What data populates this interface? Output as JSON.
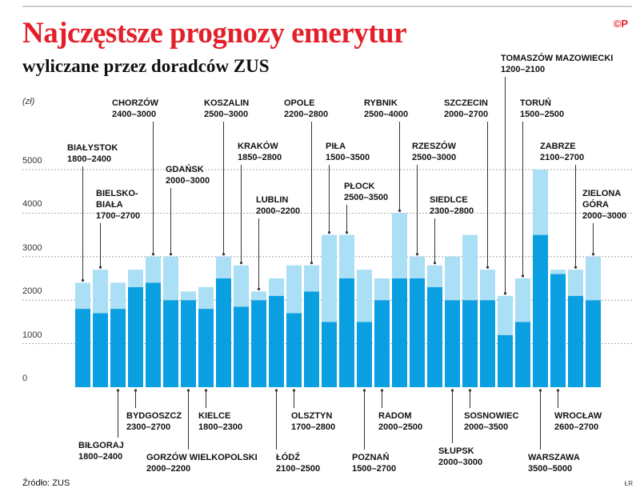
{
  "header": {
    "title": "Najczęstsze prognozy emerytur",
    "subtitle": "wyliczane przez doradców ZUS",
    "logo": "©P"
  },
  "chart_data": {
    "type": "range-bar",
    "unit": "(zł)",
    "categories": [
      "BIAŁYSTOK",
      "BIELSKO-BIAŁA",
      "BIŁGORAJ",
      "BYDGOSZCZ",
      "CHORZÓW",
      "GDAŃSK",
      "GORZÓW WIELKOPOLSKI",
      "KIELCE",
      "KOSZALIN",
      "KRAKÓW",
      "LUBLIN",
      "ŁÓDŹ",
      "OLSZTYN",
      "OPOLE",
      "PIŁA",
      "PŁOCK",
      "POZNAŃ",
      "RADOM",
      "RYBNIK",
      "RZESZÓW",
      "SIEDLCE",
      "SŁUPSK",
      "SOSNOWIEC",
      "SZCZECIN",
      "TOMASZÓW MAZOWIECKI",
      "TORUŃ",
      "WARSZAWA",
      "WROCŁAW",
      "ZABRZE",
      "ZIELONA GÓRA"
    ],
    "low": [
      1800,
      1700,
      1800,
      2300,
      2400,
      2000,
      2000,
      1800,
      2500,
      1850,
      2000,
      2100,
      1700,
      2200,
      1500,
      2500,
      1500,
      2000,
      2500,
      2500,
      2300,
      2000,
      2000,
      2000,
      1200,
      1500,
      3500,
      2600,
      2100,
      2000
    ],
    "high": [
      2400,
      2700,
      2400,
      2700,
      3000,
      3000,
      2200,
      2300,
      3000,
      2800,
      2200,
      2500,
      2800,
      2800,
      3500,
      3500,
      2700,
      2500,
      4000,
      3000,
      2800,
      3000,
      3500,
      2700,
      2100,
      2500,
      5000,
      2700,
      2700,
      3000
    ],
    "value_labels": [
      "1800–2400",
      "1700–2700",
      "1800–2400",
      "2300–2700",
      "2400–3000",
      "2000–3000",
      "2000–2200",
      "1800–2300",
      "2500–3000",
      "1850–2800",
      "2000–2200",
      "2100–2500",
      "1700–2800",
      "2200–2800",
      "1500–3500",
      "2500–3500",
      "1500–2700",
      "2000–2500",
      "2500–4000",
      "2500–3000",
      "2300–2800",
      "2000–3000",
      "2000–3500",
      "2000–2700",
      "1200–2100",
      "1500–2500",
      "3500–5000",
      "2600–2700",
      "2100–2700",
      "2000–3000"
    ],
    "low_color": "#0a9fe0",
    "high_color": "#aadff6",
    "ylim": [
      0,
      5000
    ],
    "yticks": [
      0,
      1000,
      2000,
      3000,
      4000,
      5000
    ],
    "grid": true
  },
  "footer": {
    "source": "Źródło: ZUS",
    "credit": "ŁR"
  }
}
